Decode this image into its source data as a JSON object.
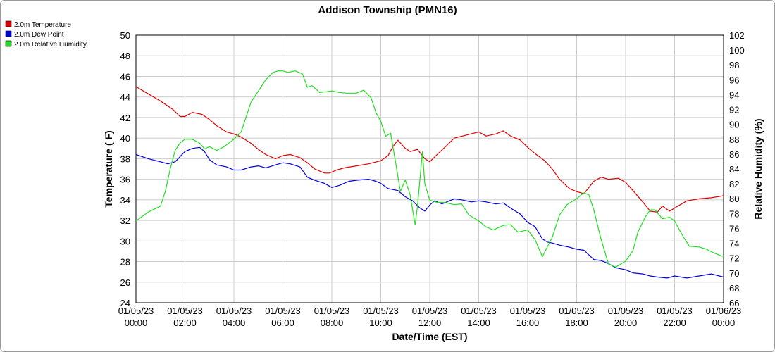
{
  "chart_data": {
    "type": "line",
    "title": "Addison Township (PMN16)",
    "xlabel": "Date/Time (EST)",
    "ylabel_left": "Temperature ( F)",
    "ylabel_right": "Relative Humidity (%)",
    "x_ticks": [
      {
        "date": "01/05/23",
        "time": "00:00"
      },
      {
        "date": "01/05/23",
        "time": "02:00"
      },
      {
        "date": "01/05/23",
        "time": "04:00"
      },
      {
        "date": "01/05/23",
        "time": "06:00"
      },
      {
        "date": "01/05/23",
        "time": "08:00"
      },
      {
        "date": "01/05/23",
        "time": "10:00"
      },
      {
        "date": "01/05/23",
        "time": "12:00"
      },
      {
        "date": "01/05/23",
        "time": "14:00"
      },
      {
        "date": "01/05/23",
        "time": "16:00"
      },
      {
        "date": "01/05/23",
        "time": "18:00"
      },
      {
        "date": "01/05/23",
        "time": "20:00"
      },
      {
        "date": "01/05/23",
        "time": "22:00"
      },
      {
        "date": "01/06/23",
        "time": "00:00"
      }
    ],
    "x_unit": "hours since 01/05/23 00:00",
    "xlim": [
      0,
      24
    ],
    "ylim_left": [
      24,
      50
    ],
    "yticks_left": [
      24,
      26,
      28,
      30,
      32,
      34,
      36,
      38,
      40,
      42,
      44,
      46,
      48,
      50
    ],
    "ylim_right": [
      66,
      102
    ],
    "yticks_right": [
      66,
      68,
      70,
      72,
      74,
      76,
      78,
      80,
      82,
      84,
      86,
      88,
      90,
      92,
      94,
      96,
      98,
      100,
      102
    ],
    "grid": true,
    "legend_position": "top-left",
    "series": [
      {
        "name": "2.0m Temperature",
        "axis": "left",
        "color": "#e00000",
        "x": [
          0,
          0.5,
          1,
          1.5,
          1.8,
          2,
          2.3,
          2.7,
          3,
          3.3,
          3.7,
          4,
          4.3,
          4.7,
          5,
          5.3,
          5.7,
          6,
          6.3,
          6.7,
          7,
          7.3,
          7.7,
          7.9,
          8.2,
          8.5,
          9,
          9.5,
          10,
          10.3,
          10.5,
          10.7,
          11,
          11.2,
          11.5,
          11.8,
          12,
          12.3,
          12.7,
          13,
          13.5,
          14,
          14.3,
          14.7,
          15,
          15.3,
          15.7,
          16,
          16.3,
          16.7,
          17,
          17.3,
          17.7,
          18,
          18.3,
          18.7,
          19,
          19.3,
          19.7,
          20,
          20.3,
          20.7,
          21,
          21.3,
          21.5,
          21.8,
          22,
          22.5,
          23,
          23.5,
          24
        ],
        "y": [
          45,
          44.3,
          43.6,
          42.8,
          42.1,
          42.1,
          42.5,
          42.3,
          41.8,
          41.2,
          40.6,
          40.4,
          40.1,
          39.5,
          38.9,
          38.4,
          38.0,
          38.3,
          38.4,
          38.1,
          37.6,
          37.0,
          36.6,
          36.6,
          36.9,
          37.1,
          37.3,
          37.5,
          37.8,
          38.3,
          39.2,
          39.8,
          39.0,
          38.7,
          38.9,
          38.0,
          37.7,
          38.4,
          39.3,
          40.0,
          40.3,
          40.6,
          40.2,
          40.4,
          40.7,
          40.2,
          39.8,
          39.1,
          38.5,
          37.8,
          37.0,
          36.0,
          35.1,
          34.8,
          34.6,
          35.8,
          36.2,
          36.0,
          36.1,
          35.7,
          34.9,
          33.8,
          32.9,
          32.8,
          33.4,
          32.9,
          33.2,
          33.9,
          34.1,
          34.2,
          34.4
        ]
      },
      {
        "name": "2.0m Dew Point",
        "axis": "left",
        "color": "#0000dd",
        "x": [
          0,
          0.5,
          1,
          1.3,
          1.6,
          2,
          2.3,
          2.6,
          2.8,
          3,
          3.3,
          3.7,
          4,
          4.3,
          4.7,
          5,
          5.3,
          5.7,
          6,
          6.3,
          6.7,
          7,
          7.3,
          7.7,
          8,
          8.3,
          8.7,
          9,
          9.5,
          9.8,
          10,
          10.3,
          10.7,
          11,
          11.3,
          11.6,
          11.8,
          12,
          12.2,
          12.5,
          12.8,
          13,
          13.3,
          13.7,
          14,
          14.3,
          14.7,
          15,
          15.3,
          15.7,
          16,
          16.3,
          16.6,
          16.8,
          17,
          17.3,
          17.7,
          18,
          18.3,
          18.7,
          19,
          19.3,
          19.6,
          20,
          20.3,
          20.7,
          21,
          21.3,
          21.7,
          22,
          22.5,
          23,
          23.5,
          24
        ],
        "y": [
          38.4,
          38.0,
          37.7,
          37.5,
          37.7,
          38.7,
          39.0,
          39.1,
          38.7,
          37.9,
          37.4,
          37.2,
          36.9,
          36.9,
          37.2,
          37.3,
          37.1,
          37.4,
          37.6,
          37.5,
          37.2,
          36.2,
          35.9,
          35.6,
          35.2,
          35.4,
          35.8,
          35.9,
          36.0,
          35.8,
          35.6,
          35.1,
          34.9,
          34.3,
          33.9,
          33.2,
          32.9,
          33.5,
          33.9,
          33.6,
          33.9,
          34.1,
          34.0,
          33.8,
          33.9,
          33.8,
          33.6,
          33.7,
          33.2,
          32.6,
          31.8,
          31.4,
          30.2,
          29.9,
          29.8,
          29.6,
          29.4,
          29.2,
          29.1,
          28.2,
          28.1,
          27.8,
          27.4,
          27.2,
          26.9,
          26.8,
          26.6,
          26.5,
          26.4,
          26.6,
          26.4,
          26.6,
          26.8,
          26.5
        ]
      },
      {
        "name": "2.0m Relative Humidity",
        "axis": "right",
        "color": "#22dd22",
        "x": [
          0,
          0.5,
          1,
          1.2,
          1.4,
          1.6,
          1.8,
          2,
          2.3,
          2.6,
          2.8,
          3,
          3.3,
          3.6,
          4,
          4.3,
          4.5,
          4.7,
          5,
          5.3,
          5.6,
          5.8,
          6,
          6.2,
          6.5,
          6.8,
          7,
          7.2,
          7.5,
          7.8,
          8,
          8.3,
          8.6,
          9,
          9.3,
          9.6,
          9.8,
          10,
          10.2,
          10.4,
          10.6,
          10.7,
          10.8,
          11,
          11.2,
          11.4,
          11.5,
          11.7,
          11.8,
          12,
          12.3,
          12.6,
          13,
          13.3,
          13.6,
          14,
          14.3,
          14.6,
          15,
          15.3,
          15.6,
          16,
          16.3,
          16.6,
          16.8,
          17,
          17.3,
          17.6,
          18,
          18.3,
          18.5,
          18.7,
          19,
          19.3,
          19.6,
          20,
          20.3,
          20.5,
          20.8,
          21,
          21.2,
          21.5,
          21.8,
          22,
          22.3,
          22.6,
          23,
          23.3,
          23.6,
          24
        ],
        "y": [
          77,
          78.2,
          79,
          81,
          84,
          86.5,
          87.5,
          88,
          88,
          87.5,
          86.7,
          87,
          86.5,
          87,
          88,
          89,
          91,
          93,
          94.5,
          96,
          97,
          97.2,
          97.2,
          97,
          97.2,
          96.8,
          95,
          95.2,
          94.3,
          94.4,
          94.5,
          94.3,
          94.2,
          94.2,
          94.6,
          93.6,
          91.6,
          90.4,
          88.4,
          88.8,
          85,
          83,
          81,
          82.5,
          80.5,
          76.5,
          79,
          86.3,
          82,
          79.8,
          79.5,
          79.5,
          79.2,
          79.3,
          77.8,
          77,
          76.2,
          75.8,
          76.4,
          76.5,
          75.5,
          75.8,
          74.5,
          72.2,
          73.5,
          74.8,
          77.8,
          79.2,
          80,
          80.8,
          80.5,
          78.5,
          74.5,
          71.2,
          70.8,
          71.6,
          73,
          75.5,
          77.5,
          78.5,
          78.5,
          77.3,
          77.5,
          77,
          75.2,
          73.6,
          73.5,
          73.2,
          72.7,
          72.2
        ]
      }
    ]
  }
}
